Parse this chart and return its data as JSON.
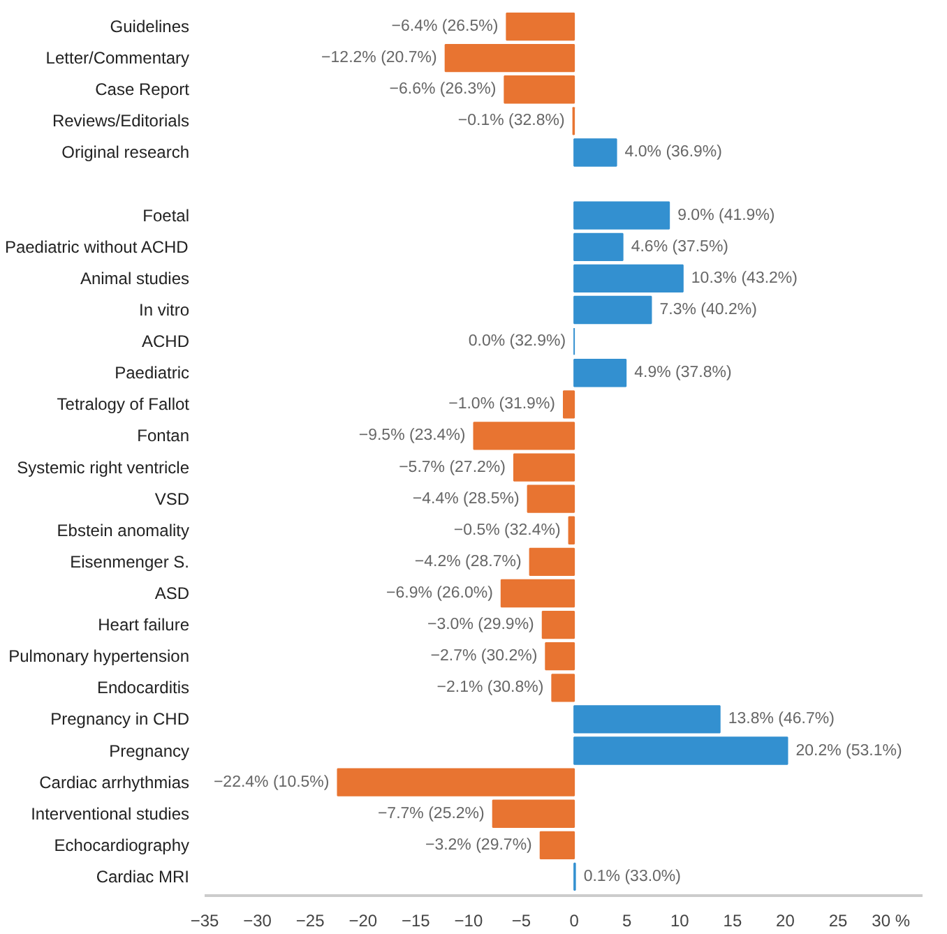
{
  "chart_data": {
    "type": "bar",
    "orientation": "horizontal",
    "categories": [
      "Guidelines",
      "Letter/Commentary",
      "Case Report",
      "Reviews/Editorials",
      "Original research",
      null,
      "Foetal",
      "Paediatric without ACHD",
      "Animal studies",
      "In vitro",
      "ACHD",
      "Paediatric",
      "Tetralogy of Fallot",
      "Fontan",
      "Systemic right ventricle",
      "VSD",
      "Ebstein anomality",
      "Eisenmenger S.",
      "ASD",
      "Heart failure",
      "Pulmonary hypertension",
      "Endocarditis",
      "Pregnancy in CHD",
      "Pregnancy",
      "Cardiac arrhythmias",
      "Interventional studies",
      "Echocardiography",
      "Cardiac MRI"
    ],
    "values": [
      -6.4,
      -12.2,
      -6.6,
      -0.1,
      4.0,
      null,
      9.0,
      4.6,
      10.3,
      7.3,
      0.0,
      4.9,
      -1.0,
      -9.5,
      -5.7,
      -4.4,
      -0.5,
      -4.2,
      -6.9,
      -3.0,
      -2.7,
      -2.1,
      13.8,
      20.2,
      -22.4,
      -7.7,
      -3.2,
      0.1
    ],
    "value_labels": [
      "−6.4% (26.5%)",
      "−12.2% (20.7%)",
      "−6.6% (26.3%)",
      "−0.1% (32.8%)",
      "4.0% (36.9%)",
      null,
      "9.0% (41.9%)",
      "4.6% (37.5%)",
      "10.3% (43.2%)",
      "7.3% (40.2%)",
      "0.0% (32.9%)",
      "4.9% (37.8%)",
      "−1.0% (31.9%)",
      "−9.5% (23.4%)",
      "−5.7% (27.2%)",
      "−4.4% (28.5%)",
      "−0.5% (32.4%)",
      "−4.2% (28.7%)",
      "−6.9% (26.0%)",
      "−3.0% (29.9%)",
      "−2.7% (30.2%)",
      "−2.1% (30.8%)",
      "13.8% (46.7%)",
      "20.2% (53.1%)",
      "−22.4% (10.5%)",
      "−7.7% (25.2%)",
      "−3.2% (29.7%)",
      "0.1% (33.0%)"
    ],
    "colors": [
      "#e87431",
      "#e87431",
      "#e87431",
      "#e87431",
      "#3390d0",
      null,
      "#3390d0",
      "#3390d0",
      "#3390d0",
      "#3390d0",
      "#3390d0",
      "#3390d0",
      "#e87431",
      "#e87431",
      "#e87431",
      "#e87431",
      "#e87431",
      "#e87431",
      "#e87431",
      "#e87431",
      "#e87431",
      "#e87431",
      "#3390d0",
      "#3390d0",
      "#e87431",
      "#e87431",
      "#e87431",
      "#3390d0"
    ],
    "xlim": [
      -35,
      33
    ],
    "xticks": [
      {
        "value": -35,
        "label": "−35"
      },
      {
        "value": -30,
        "label": "−30"
      },
      {
        "value": -25,
        "label": "−25"
      },
      {
        "value": -20,
        "label": "−20"
      },
      {
        "value": -15,
        "label": "−15"
      },
      {
        "value": -10,
        "label": "−10"
      },
      {
        "value": -5,
        "label": "−5"
      },
      0,
      5,
      10,
      15,
      20,
      25,
      {
        "value": 30,
        "label": "30 %"
      }
    ],
    "grid": false
  }
}
